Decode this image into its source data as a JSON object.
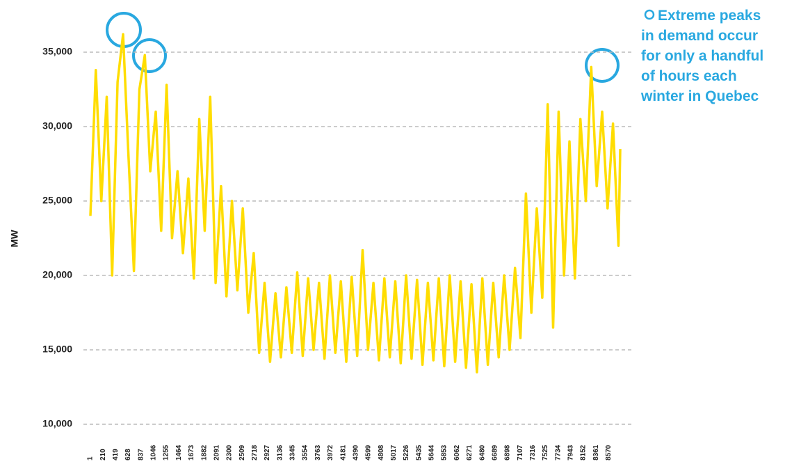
{
  "chart_data": {
    "type": "line",
    "ylabel": "MW",
    "annotation": [
      "Extreme peaks",
      "in demand occur",
      "for only a handful",
      "of hours each",
      "winter in Quebec"
    ],
    "xlim": [
      1,
      8760
    ],
    "xticks": [
      1,
      210,
      419,
      628,
      837,
      1046,
      1255,
      1464,
      1673,
      1882,
      2091,
      2300,
      2509,
      2718,
      2927,
      3136,
      3345,
      3554,
      3763,
      3972,
      4181,
      4390,
      4599,
      4808,
      5017,
      5226,
      5435,
      5644,
      5853,
      6062,
      6271,
      6480,
      6689,
      6898,
      7107,
      7316,
      7525,
      7734,
      7943,
      8152,
      8361,
      8570
    ],
    "ylim": [
      10000,
      37500
    ],
    "yticks": [
      {
        "value": 10000,
        "label": "10,000"
      },
      {
        "value": 15000,
        "label": "15,000"
      },
      {
        "value": 20000,
        "label": "20,000"
      },
      {
        "value": 25000,
        "label": "25,000"
      },
      {
        "value": 30000,
        "label": "30,000"
      },
      {
        "value": 35000,
        "label": "35,000"
      }
    ],
    "grid": true,
    "series": [
      {
        "color": "#ffdd00",
        "x": [
          1,
          91,
          181,
          271,
          361,
          451,
          541,
          631,
          721,
          811,
          901,
          991,
          1081,
          1171,
          1261,
          1351,
          1441,
          1531,
          1621,
          1711,
          1801,
          1891,
          1981,
          2071,
          2161,
          2251,
          2341,
          2431,
          2521,
          2611,
          2701,
          2791,
          2881,
          2971,
          3061,
          3151,
          3241,
          3331,
          3421,
          3511,
          3601,
          3691,
          3781,
          3871,
          3961,
          4051,
          4141,
          4231,
          4321,
          4411,
          4501,
          4591,
          4681,
          4771,
          4861,
          4951,
          5041,
          5131,
          5221,
          5311,
          5401,
          5491,
          5581,
          5671,
          5761,
          5851,
          5941,
          6031,
          6121,
          6211,
          6301,
          6391,
          6481,
          6571,
          6661,
          6751,
          6841,
          6931,
          7021,
          7111,
          7201,
          7291,
          7381,
          7471,
          7561,
          7651,
          7741,
          7831,
          7921,
          8011,
          8101,
          8191,
          8281,
          8371,
          8461,
          8551,
          8641,
          8731,
          8760
        ],
        "values": [
          24000,
          33800,
          25000,
          32000,
          20000,
          33000,
          36200,
          28000,
          20300,
          32500,
          34800,
          27000,
          31000,
          23000,
          32800,
          22500,
          27000,
          21500,
          26500,
          19800,
          30500,
          23000,
          32000,
          19500,
          26000,
          18600,
          25000,
          19000,
          24500,
          17500,
          21500,
          14800,
          19500,
          14200,
          18800,
          14500,
          19200,
          14800,
          20200,
          14600,
          19800,
          15000,
          19500,
          14400,
          20000,
          14800,
          19600,
          14200,
          19900,
          14600,
          21700,
          15000,
          19500,
          14300,
          19800,
          14500,
          19600,
          14100,
          20000,
          14400,
          19700,
          14000,
          19500,
          14300,
          19800,
          13900,
          20000,
          14200,
          19600,
          13800,
          19400,
          13500,
          19800,
          14000,
          19500,
          14500,
          20000,
          15000,
          20500,
          15800,
          25500,
          17500,
          24500,
          18500,
          31500,
          16500,
          31000,
          20000,
          29000,
          19800,
          30500,
          25000,
          34000,
          26000,
          31000,
          24500,
          30200,
          22000,
          28500
        ]
      }
    ]
  }
}
